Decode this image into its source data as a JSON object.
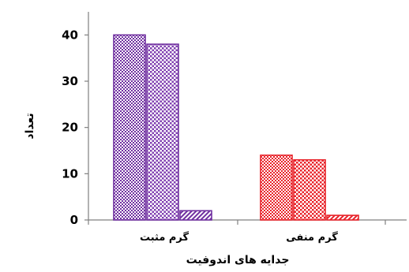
{
  "chart_data": {
    "type": "bar",
    "categories": [
      "گرم مثبت",
      "گرم منفی"
    ],
    "series": [
      {
        "values": [
          40,
          14
        ]
      },
      {
        "values": [
          38,
          13
        ]
      },
      {
        "values": [
          2,
          1
        ]
      }
    ],
    "colors": [
      "#7030a0",
      "#e8232a"
    ],
    "ylabel": "تعداد",
    "xlabel": "جدایه های اندوفیت",
    "ylim": [
      0,
      45
    ],
    "yticks": [
      0,
      10,
      20,
      30,
      40
    ],
    "grid": false,
    "legend": "none"
  }
}
